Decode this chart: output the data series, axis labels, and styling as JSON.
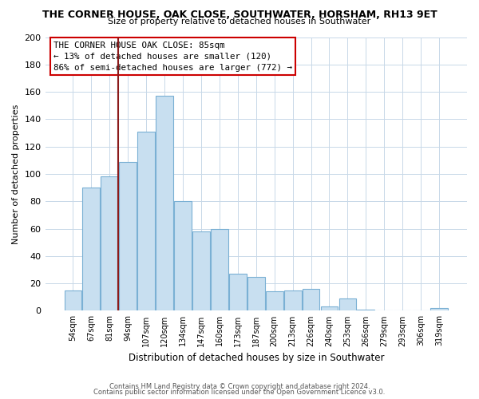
{
  "title": "THE CORNER HOUSE, OAK CLOSE, SOUTHWATER, HORSHAM, RH13 9ET",
  "subtitle": "Size of property relative to detached houses in Southwater",
  "xlabel": "Distribution of detached houses by size in Southwater",
  "ylabel": "Number of detached properties",
  "bar_color": "#c8dff0",
  "bar_edge_color": "#7ab0d4",
  "categories": [
    "54sqm",
    "67sqm",
    "81sqm",
    "94sqm",
    "107sqm",
    "120sqm",
    "134sqm",
    "147sqm",
    "160sqm",
    "173sqm",
    "187sqm",
    "200sqm",
    "213sqm",
    "226sqm",
    "240sqm",
    "253sqm",
    "266sqm",
    "279sqm",
    "293sqm",
    "306sqm",
    "319sqm"
  ],
  "values": [
    15,
    90,
    98,
    109,
    131,
    157,
    80,
    58,
    60,
    27,
    25,
    14,
    15,
    16,
    3,
    9,
    1,
    0,
    0,
    0,
    2
  ],
  "ylim": [
    0,
    200
  ],
  "yticks": [
    0,
    20,
    40,
    60,
    80,
    100,
    120,
    140,
    160,
    180,
    200
  ],
  "annotation_title": "THE CORNER HOUSE OAK CLOSE: 85sqm",
  "annotation_line1": "← 13% of detached houses are smaller (120)",
  "annotation_line2": "86% of semi-detached houses are larger (772) →",
  "marker_index": 2,
  "footer1": "Contains HM Land Registry data © Crown copyright and database right 2024.",
  "footer2": "Contains public sector information licensed under the Open Government Licence v3.0.",
  "background_color": "#ffffff",
  "grid_color": "#c8d8e8"
}
